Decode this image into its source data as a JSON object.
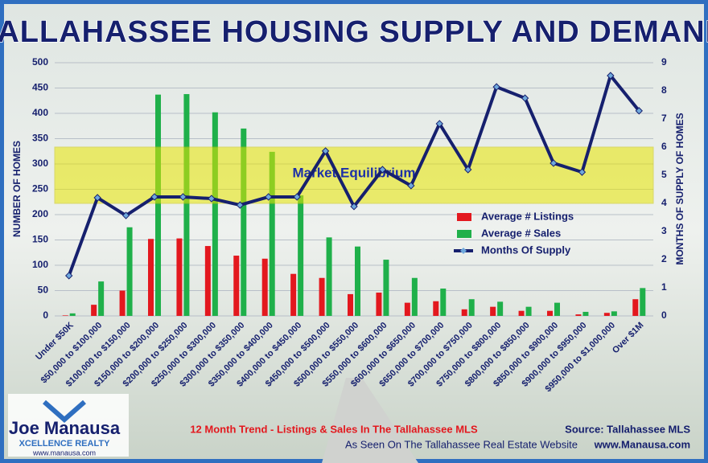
{
  "chart_data": {
    "type": "bar",
    "title": "TALLAHASSEE HOUSING SUPPLY AND DEMAND",
    "y_label": "NUMBER OF HOMES",
    "y2_label": "MONTHS OF SUPPLY OF HOMES",
    "categories": [
      "Under $50K",
      "$50,000 to $100,000",
      "$100,000 to $150,000",
      "$150,000 to $200,000",
      "$200,000 to $250,000",
      "$250,000 to $300,000",
      "$300,000 to $350,000",
      "$350,000 to $400,000",
      "$400,000 to $450,000",
      "$450,000 to $500,000",
      "$500,000 to $550,000",
      "$550,000 to $600,000",
      "$600,000 to $650,000",
      "$650,000 to $700,000",
      "$700,000 to $750,000",
      "$750,000 to $800,000",
      "$800,000 to $850,000",
      "$850,000 to $900,000",
      "$900,000 to $950,000",
      "$950,000 to $1,000,000",
      "Over $1M"
    ],
    "series": [
      {
        "name": "Average # Listings",
        "color": "#e3181e",
        "type": "bar",
        "values": [
          1,
          22,
          50,
          152,
          153,
          138,
          119,
          113,
          83,
          75,
          43,
          46,
          26,
          29,
          13,
          18,
          10,
          10,
          3,
          6,
          33
        ]
      },
      {
        "name": "Average # Sales",
        "color": "#1fb04a",
        "type": "bar",
        "values": [
          5,
          68,
          175,
          437,
          438,
          402,
          370,
          324,
          238,
          155,
          137,
          111,
          75,
          54,
          33,
          28,
          18,
          26,
          8,
          9,
          55
        ]
      },
      {
        "name": "Months Of Supply",
        "color": "#16206e",
        "type": "line",
        "axis": "y2",
        "values": [
          1.43,
          4.2,
          3.57,
          4.23,
          4.23,
          4.17,
          3.94,
          4.23,
          4.23,
          5.86,
          3.89,
          5.2,
          4.63,
          6.83,
          5.2,
          8.14,
          7.74,
          5.43,
          5.11,
          8.54,
          7.29
        ]
      }
    ],
    "ylim": [
      0,
      500
    ],
    "yticks": [
      0,
      50,
      100,
      150,
      200,
      250,
      300,
      350,
      400,
      450,
      500
    ],
    "y2lim": [
      0,
      9
    ],
    "y2ticks": [
      0,
      1,
      2,
      3,
      4,
      5,
      6,
      7,
      8,
      9
    ],
    "grid": true,
    "band": {
      "axis": "y2",
      "from": 4,
      "to": 6,
      "label": "Market Equilibrium",
      "color": "#e8e600"
    },
    "footer": "12 Month Trend - Listings & Sales In The Tallahassee MLS",
    "source": "Source: Tallahassee MLS",
    "seen_on": "As Seen On The Tallahassee Real Estate Website",
    "website": "www.Manausa.com",
    "logo": {
      "name": "Joe Manausa",
      "tagline": "XCELLENCE REALTY",
      "url": "www.manausa.com"
    }
  }
}
